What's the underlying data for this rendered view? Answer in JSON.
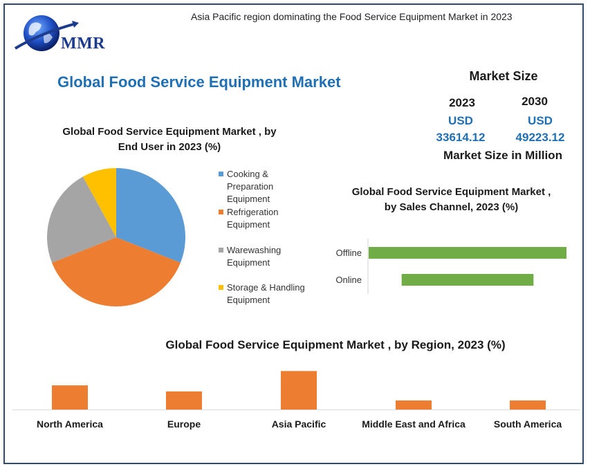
{
  "header": {
    "subtitle": "Asia Pacific region dominating the Food Service Equipment Market in 2023",
    "logo_text": "MMR",
    "title": "Global Food Service Equipment Market"
  },
  "market_size": {
    "title": "Market Size",
    "year1": "2023",
    "year2": "2030",
    "currency1": "USD",
    "currency2": "USD",
    "value1": "33614.12",
    "value2": "49223.12",
    "unit": "Market Size in Million"
  },
  "colors": {
    "blue": "#5b9bd5",
    "orange": "#ed7d31",
    "gray": "#a5a5a5",
    "yellow": "#ffc000",
    "green": "#70ad47",
    "title_blue": "#1f6fb5"
  },
  "chart_data": [
    {
      "type": "pie",
      "title_line1": "Global Food Service Equipment Market , by",
      "title_line2": "End User in 2023 (%)",
      "categories": [
        "Cooking & Preparation Equipment",
        "Refrigeration Equipment",
        "Warewashing Equipment",
        "Storage & Handling Equipment"
      ],
      "legend_lines": [
        [
          "Cooking &",
          "Preparation",
          "Equipment"
        ],
        [
          "Refrigeration",
          "Equipment"
        ],
        [
          "Warewashing",
          "Equipment"
        ],
        [
          "Storage & Handling",
          "Equipment"
        ]
      ],
      "values": [
        31,
        38,
        23,
        8
      ],
      "legend_position": "right"
    },
    {
      "type": "bar",
      "orientation": "horizontal",
      "title_line1": "Global Food Service Equipment Market ,",
      "title_line2": "by Sales Channel, 2023 (%)",
      "categories": [
        "Offline",
        "Online"
      ],
      "ranges": [
        [
          0,
          60
        ],
        [
          10,
          50
        ]
      ],
      "xlim": [
        0,
        60
      ]
    },
    {
      "type": "bar",
      "title": "Global Food Service Equipment Market , by Region, 2023 (%)",
      "categories": [
        "North America",
        "Europe",
        "Asia Pacific",
        "Middle East and Africa",
        "South America"
      ],
      "values": [
        32,
        24,
        51,
        12,
        12
      ],
      "ylim": [
        0,
        55
      ]
    }
  ]
}
